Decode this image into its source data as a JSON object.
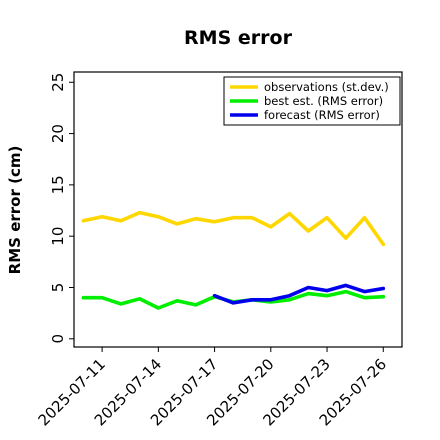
{
  "chart_data": {
    "type": "line",
    "title": "RMS error",
    "xlabel": "",
    "ylabel": "RMS error (cm)",
    "ylim": [
      0,
      26
    ],
    "yticks": [
      0,
      5,
      10,
      15,
      20,
      25
    ],
    "xticks": [
      "2025-07-11",
      "2025-07-14",
      "2025-07-17",
      "2025-07-20",
      "2025-07-23",
      "2025-07-26"
    ],
    "highlighted_xtick": "2025-07-17",
    "highlight_color": "#228b22",
    "grid": false,
    "legend_position": "top-right",
    "series": [
      {
        "name": "observations (st.dev.)",
        "color": "#ffd700",
        "x": [
          "2025-07-10",
          "2025-07-11",
          "2025-07-12",
          "2025-07-13",
          "2025-07-14",
          "2025-07-15",
          "2025-07-16",
          "2025-07-17",
          "2025-07-18",
          "2025-07-19",
          "2025-07-20",
          "2025-07-21",
          "2025-07-22",
          "2025-07-23",
          "2025-07-24",
          "2025-07-25",
          "2025-07-26"
        ],
        "y": [
          11.5,
          11.9,
          11.5,
          12.3,
          11.9,
          11.2,
          11.7,
          11.4,
          11.8,
          11.8,
          10.9,
          12.2,
          10.5,
          11.8,
          9.8,
          11.8,
          9.2
        ]
      },
      {
        "name": "best est. (RMS error)",
        "color": "#00ee00",
        "x": [
          "2025-07-10",
          "2025-07-11",
          "2025-07-12",
          "2025-07-13",
          "2025-07-14",
          "2025-07-15",
          "2025-07-16",
          "2025-07-17",
          "2025-07-18",
          "2025-07-19",
          "2025-07-20",
          "2025-07-21",
          "2025-07-22",
          "2025-07-23",
          "2025-07-24",
          "2025-07-25",
          "2025-07-26"
        ],
        "y": [
          4.0,
          4.0,
          3.4,
          3.9,
          3.0,
          3.7,
          3.3,
          4.1,
          3.6,
          3.8,
          3.6,
          3.8,
          4.4,
          4.2,
          4.6,
          4.0,
          4.1
        ]
      },
      {
        "name": "forecast (RMS error)",
        "color": "#0000ee",
        "x": [
          "2025-07-17",
          "2025-07-18",
          "2025-07-19",
          "2025-07-20",
          "2025-07-21",
          "2025-07-22",
          "2025-07-23",
          "2025-07-24",
          "2025-07-25",
          "2025-07-26"
        ],
        "y": [
          4.2,
          3.5,
          3.8,
          3.8,
          4.2,
          5.0,
          4.7,
          5.2,
          4.6,
          4.9
        ]
      }
    ]
  }
}
